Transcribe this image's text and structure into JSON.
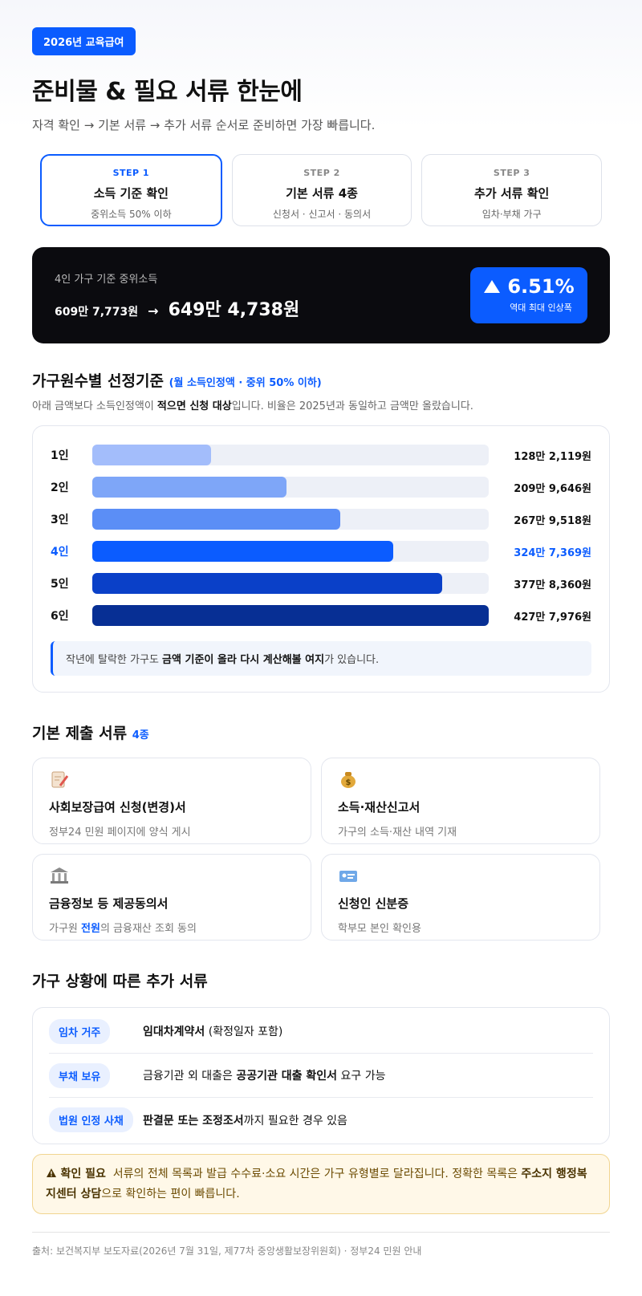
{
  "header": {
    "badge": "2026년 교육급여",
    "title": "준비물 & 필요 서류 한눈에",
    "subtitle": "자격 확인 → 기본 서류 → 추가 서류 순서로 준비하면 가장 빠릅니다."
  },
  "steps": [
    {
      "label": "STEP 1",
      "title": "소득 기준 확인",
      "desc": "중위소득 50% 이하"
    },
    {
      "label": "STEP 2",
      "title": "기본 서류 4종",
      "desc": "신청서 · 신고서 · 동의서"
    },
    {
      "label": "STEP 3",
      "title": "추가 서류 확인",
      "desc": "임차·부채 가구"
    }
  ],
  "income_banner": {
    "label": "4인 가구 기준 중위소득",
    "before": "609만 7,773원",
    "arrow": "→",
    "after": "649만 4,738원",
    "change": "6.51%",
    "change_note": "역대 최대 인상폭"
  },
  "chart_data": {
    "type": "bar",
    "title": "가구원수별 선정기준",
    "subtitle": "(월 소득인정액 · 중위 50% 이하)",
    "description": [
      "아래 금액보다 소득인정액이 ",
      "적으면 신청 대상",
      "입니다. 비율은 2025년과 동일하고 금액만 올랐습니다."
    ],
    "categories": [
      "1인",
      "2인",
      "3인",
      "4인",
      "5인",
      "6인"
    ],
    "values": [
      1282119,
      2099646,
      2679518,
      3247369,
      3778360,
      4277976
    ],
    "value_labels": [
      "128만 2,119원",
      "209만 9,646원",
      "267만 9,518원",
      "324만 7,369원",
      "377만 8,360원",
      "427만 7,976원"
    ],
    "colors": [
      "#a3bdfb",
      "#7ea6f8",
      "#5b8ef6",
      "#0b5cff",
      "#0a40c8",
      "#072f94"
    ],
    "label_colors": [
      "#111111",
      "#111111",
      "#111111",
      "#0b5cff",
      "#111111",
      "#111111"
    ],
    "note": [
      "작년에 탈락한 가구도 ",
      "금액 기준이 올라 다시 계산해볼 여지",
      "가 있습니다."
    ]
  },
  "basic_docs": {
    "title": "기본 제출 서류",
    "count": "4종",
    "items": [
      {
        "title": "사회보장급여 신청(변경)서",
        "desc": [
          "정부24 민원 페이지에 양식 게시"
        ]
      },
      {
        "title": "소득·재산신고서",
        "desc": [
          "가구의 소득·재산 내역 기재"
        ]
      },
      {
        "title": "금융정보 등 제공동의서",
        "desc": [
          "가구원 ",
          "전원",
          "의 금융재산 조회 동의"
        ]
      },
      {
        "title": "신청인 신분증",
        "desc": [
          "학부모 본인 확인용"
        ]
      }
    ]
  },
  "extra_docs": {
    "title": "가구 상황에 따른 추가 서류",
    "rows": [
      {
        "tag": "임차 거주",
        "text": [
          "임대차계약서",
          " (확정일자 포함)"
        ]
      },
      {
        "tag": "부채 보유",
        "text": [
          "금융기관 외 대출은 ",
          "공공기관 대출 확인서",
          " 요구 가능"
        ]
      },
      {
        "tag": "법원 인정 사채",
        "text": [
          "판결문 또는 조정조서",
          "까지 필요한 경우 있음"
        ]
      }
    ]
  },
  "warning": {
    "label": "확인 필요",
    "text": [
      "서류의 전체 목록과 발급 수수료·소요 시간은 가구 유형별로 달라집니다. 정확한 목록은 ",
      "주소지 행정복지센터 상담",
      "으로 확인하는 편이 빠릅니다."
    ]
  },
  "footer": "출처: 보건복지부 보도자료(2026년 7월 31일, 제77차 중앙생활보장위원회) · 정부24 민원 안내"
}
